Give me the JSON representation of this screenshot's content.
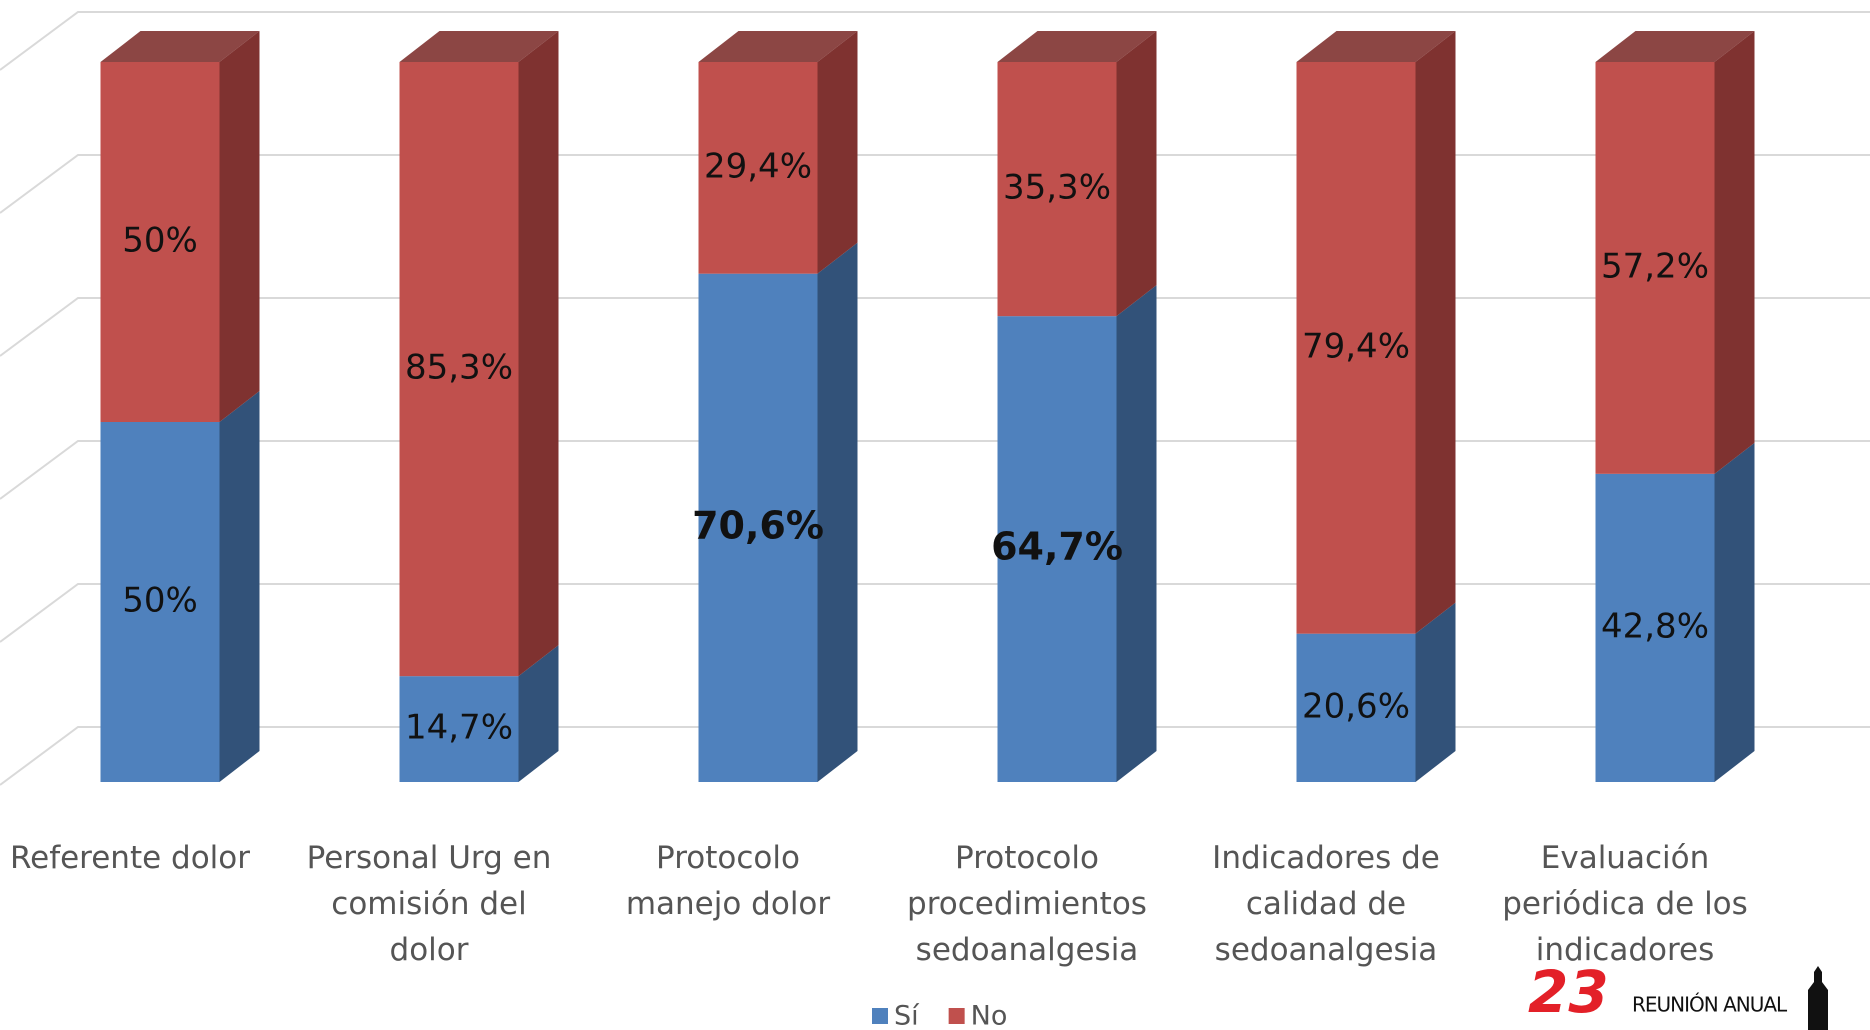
{
  "chart_data": {
    "type": "bar3d_stacked",
    "categories": [
      "Referente dolor",
      "Personal Urg en comisión del dolor",
      "Protocolo manejo dolor",
      "Protocolo procedimientos sedoanalgesia",
      "Indicadores de calidad de sedoanalgesia",
      "Evaluación periódica de los indicadores"
    ],
    "series": [
      {
        "name": "Sí",
        "color": "#4f81bd",
        "side": "#325279",
        "values": [
          50,
          14.7,
          70.6,
          64.7,
          20.6,
          42.8
        ],
        "value_labels": [
          "50%",
          "14,7%",
          "70,6%",
          "64,7%",
          "20,6%",
          "42,8%"
        ]
      },
      {
        "name": "No",
        "color": "#c0504d",
        "side": "#7f3230",
        "values": [
          50,
          85.3,
          29.4,
          35.3,
          79.4,
          57.2
        ],
        "value_labels": [
          "50%",
          "85,3%",
          "29,4%",
          "35,3%",
          "79,4%",
          "57,2%"
        ]
      }
    ],
    "ylim": [
      0,
      100
    ],
    "yticks": [
      0,
      20,
      40,
      60,
      80,
      100
    ],
    "grid": true,
    "legend": "bottom"
  },
  "logo": {
    "number": "23",
    "text": "REUNIÓN ANUAL"
  }
}
